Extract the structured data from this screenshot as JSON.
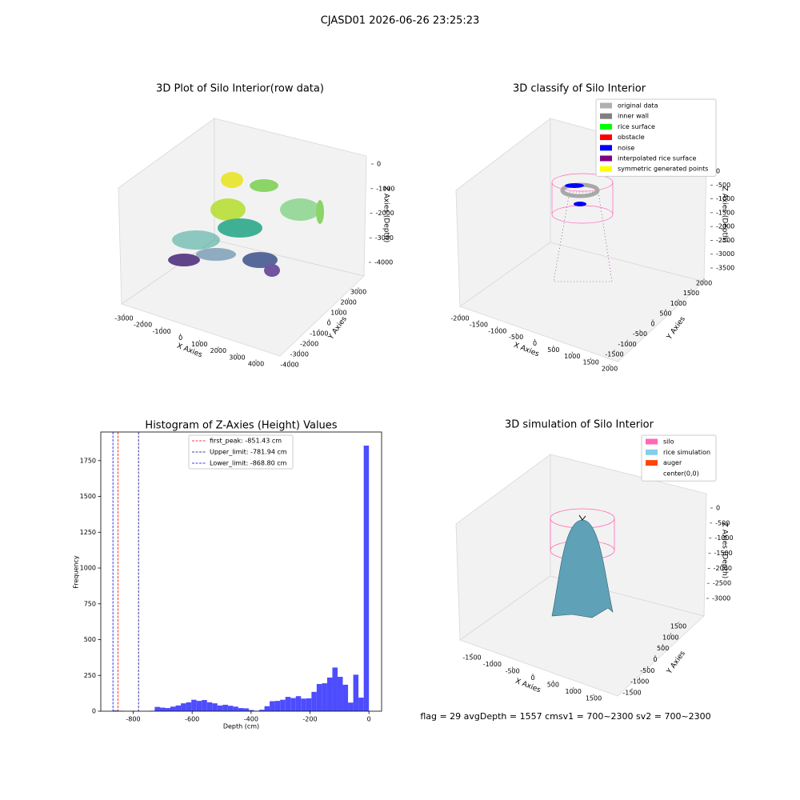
{
  "title": "CJASD01 2026-06-26 23:25:23",
  "footer": "flag = 29  avgDepth = 1557 cmsv1 = 700~2300  sv2 = 700~2300",
  "chart_data": [
    {
      "type": "scatter3d",
      "title": "3D Plot of Silo Interior(row data)",
      "xlabel": "X Axies",
      "ylabel": "Y Axies",
      "zlabel": "Z Axies (Depth)",
      "xlim": [
        -3000,
        4000
      ],
      "xticks": [
        -3000,
        -2000,
        -1000,
        0,
        1000,
        2000,
        3000,
        4000
      ],
      "ylim": [
        -4000,
        3000
      ],
      "yticks": [
        -4000,
        -3000,
        -2000,
        -1000,
        0,
        1000,
        2000,
        3000
      ],
      "zlim": [
        0,
        -4000
      ],
      "zticks": [
        0,
        -1000,
        -2000,
        -3000,
        -4000
      ]
    },
    {
      "type": "scatter3d",
      "title": "3D classify of Silo Interior",
      "xlabel": "X Axies",
      "ylabel": "Y Axies",
      "zlabel": "Z Axies (Depth)",
      "xlim": [
        -2000,
        2000
      ],
      "xticks": [
        -2000,
        -1500,
        -1000,
        -500,
        0,
        500,
        1000,
        1500,
        2000
      ],
      "ylim": [
        -1500,
        2000
      ],
      "yticks": [
        -1500,
        -1000,
        -500,
        0,
        500,
        1000,
        1500,
        2000
      ],
      "zlim": [
        0,
        -3500
      ],
      "zticks": [
        0,
        -500,
        -1000,
        -1500,
        -2000,
        -2500,
        -3000,
        -3500
      ],
      "legend": [
        {
          "name": "original data",
          "color": "#b0b0b0"
        },
        {
          "name": "inner wall",
          "color": "#808080"
        },
        {
          "name": "rice surface",
          "color": "#00ff00"
        },
        {
          "name": "obstacle",
          "color": "#ff0000"
        },
        {
          "name": "noise",
          "color": "#0000ff"
        },
        {
          "name": "interpolated rice surface",
          "color": "#800080"
        },
        {
          "name": "symmetric generated points",
          "color": "#ffff00"
        }
      ]
    },
    {
      "type": "histogram",
      "title": "Histogram of Z-Axies (Height) Values",
      "xlabel": "Depth (cm)",
      "ylabel": "Frequency",
      "color": "#4d4dff",
      "bins": [
        -868.8,
        -851.1,
        -833.3,
        -815.6,
        -797.9,
        -780.2,
        -762.4,
        -744.7,
        -727.0,
        -709.2,
        -691.5,
        -673.8,
        -656.0,
        -638.3,
        -620.6,
        -602.8,
        -585.1,
        -567.4,
        -549.6,
        -531.9,
        -514.2,
        -496.4,
        -478.7,
        -461.0,
        -443.3,
        -425.5,
        -407.8,
        -390.1,
        -372.3,
        -354.6,
        -336.9,
        -319.1,
        -301.4,
        -283.7,
        -265.9,
        -248.2,
        -230.5,
        -212.7,
        -195.0,
        -177.3,
        -159.6,
        -141.8,
        -124.1,
        -106.4,
        -88.6,
        -70.9,
        -53.2,
        -35.5,
        -17.7,
        0
      ],
      "values": [
        5,
        3,
        0,
        2,
        1,
        0,
        0,
        3,
        30,
        25,
        22,
        32,
        40,
        55,
        62,
        80,
        72,
        78,
        62,
        55,
        40,
        45,
        38,
        32,
        22,
        20,
        8,
        3,
        10,
        35,
        70,
        72,
        80,
        100,
        92,
        105,
        88,
        90,
        135,
        190,
        195,
        235,
        305,
        240,
        185,
        60,
        255,
        95,
        1855
      ],
      "xlim": [
        -910,
        43
      ],
      "xticks": [
        -800,
        -600,
        -400,
        -200,
        0
      ],
      "ylim": [
        0,
        1950
      ],
      "yticks": [
        0,
        250,
        500,
        750,
        1000,
        1250,
        1500,
        1750
      ],
      "lines": [
        {
          "name": "first_peak: -851.43 cm",
          "value": -851.43,
          "color": "#ff0000"
        },
        {
          "name": "Upper_limit: -781.94 cm",
          "value": -781.94,
          "color": "#00008b"
        },
        {
          "name": "Lower_limit: -868.80 cm",
          "value": -868.8,
          "color": "#0000ff"
        }
      ]
    },
    {
      "type": "surface3d",
      "title": "3D simulation of Silo Interior",
      "xlabel": "X Axies",
      "ylabel": "Y Axies",
      "zlabel": "Z Axies (Depth)",
      "xlim": [
        -1500,
        1500
      ],
      "xticks": [
        -1500,
        -1000,
        -500,
        0,
        500,
        1000,
        1500
      ],
      "ylim": [
        -1500,
        1500
      ],
      "yticks": [
        -1500,
        -1000,
        -500,
        0,
        500,
        1000,
        1500
      ],
      "zlim": [
        0,
        -3000
      ],
      "zticks": [
        0,
        -500,
        -1000,
        -1500,
        -2000,
        -2500,
        -3000
      ],
      "legend": [
        {
          "name": "silo",
          "color": "#ff69b4"
        },
        {
          "name": "rice simulation",
          "color": "#87ceeb"
        },
        {
          "name": "auger",
          "color": "#ff4500"
        },
        {
          "name": "center(0,0)",
          "color": "#ffffff"
        }
      ]
    }
  ]
}
